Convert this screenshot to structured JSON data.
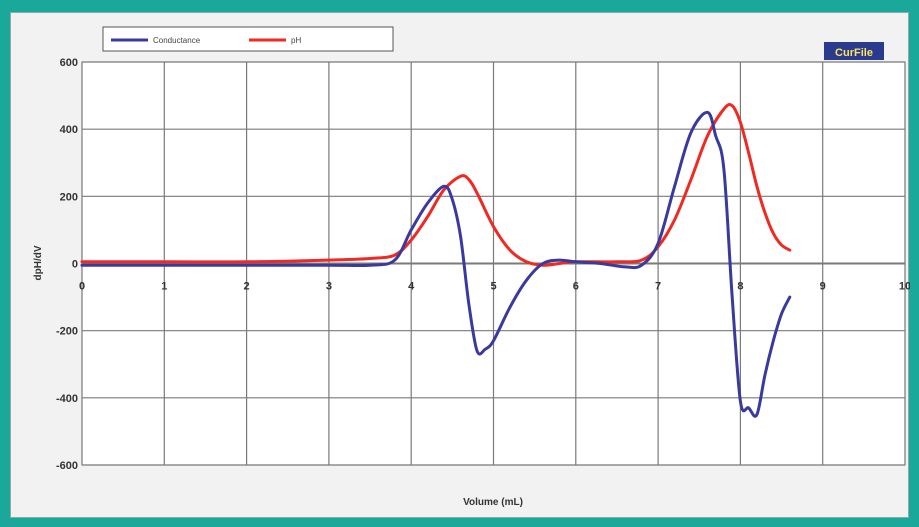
{
  "chart_data": {
    "type": "line",
    "title": "",
    "xlabel": "Volume (mL)",
    "ylabel": "dpH/dV",
    "xlim": [
      0,
      10
    ],
    "ylim": [
      -600,
      600
    ],
    "x_ticks": [
      "0",
      "1",
      "2",
      "3",
      "4",
      "5",
      "6",
      "7",
      "8",
      "9",
      "10"
    ],
    "y_ticks": [
      "600",
      "400",
      "200",
      "0",
      "-200",
      "-400",
      "-600"
    ],
    "grid": true,
    "legend_position": "top-left",
    "series": [
      {
        "name": "Conductance",
        "color": "#3a3a9e",
        "x": [
          0,
          1,
          2,
          3,
          3.5,
          3.8,
          4.0,
          4.2,
          4.4,
          4.5,
          4.6,
          4.7,
          4.8,
          4.9,
          5.0,
          5.2,
          5.4,
          5.6,
          5.8,
          6.0,
          6.3,
          6.6,
          6.8,
          7.0,
          7.2,
          7.4,
          7.6,
          7.7,
          7.8,
          7.9,
          8.0,
          8.1,
          8.2,
          8.3,
          8.4,
          8.5,
          8.6
        ],
        "values": [
          -5,
          -5,
          -5,
          -5,
          -5,
          10,
          100,
          180,
          230,
          190,
          80,
          -120,
          -260,
          -255,
          -230,
          -130,
          -50,
          0,
          10,
          5,
          0,
          -10,
          -5,
          60,
          230,
          390,
          450,
          380,
          280,
          -100,
          -410,
          -430,
          -450,
          -330,
          -230,
          -150,
          -100
        ]
      },
      {
        "name": "pH",
        "color": "#ee2a22",
        "x": [
          0,
          1,
          2,
          3,
          3.5,
          3.8,
          4.0,
          4.2,
          4.4,
          4.6,
          4.7,
          4.8,
          5.0,
          5.2,
          5.4,
          5.6,
          5.8,
          6.0,
          6.5,
          6.8,
          7.0,
          7.2,
          7.4,
          7.6,
          7.8,
          7.9,
          8.0,
          8.1,
          8.2,
          8.3,
          8.4,
          8.5,
          8.6
        ],
        "values": [
          5,
          5,
          5,
          10,
          15,
          25,
          70,
          140,
          220,
          260,
          250,
          210,
          110,
          40,
          5,
          -5,
          0,
          5,
          5,
          10,
          50,
          130,
          250,
          380,
          460,
          470,
          420,
          330,
          230,
          150,
          90,
          55,
          40
        ]
      }
    ]
  },
  "badge": {
    "label": "CurFile"
  },
  "colors": {
    "background": "#1aa89a",
    "plot_background": "#ffffff",
    "grid": "#7a7a7a",
    "badge": "#2a3a8e"
  }
}
